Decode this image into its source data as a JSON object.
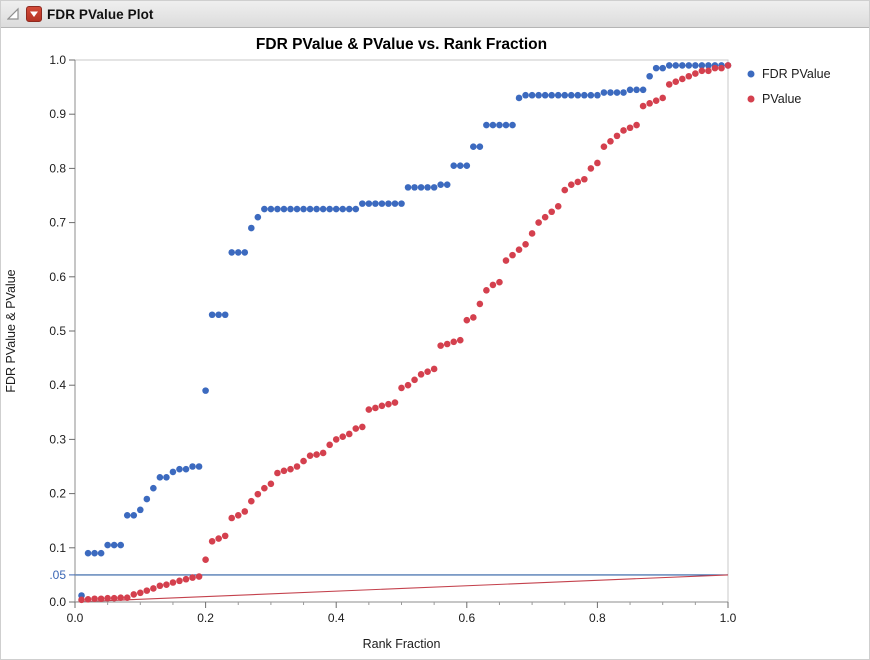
{
  "header": {
    "title": "FDR PValue Plot",
    "outline_icon": "outline-triangle-icon",
    "disclosure_icon": "disclosure-triangle-icon"
  },
  "colors": {
    "fdr_blue": "#3c6abf",
    "pvalue_red": "#d4404e",
    "ref_blue": "#2e5fa3",
    "ref_red": "#c4424d",
    "special_tick_blue": "#3a66b5",
    "header_bg": "#e4e4e4",
    "axis_gray": "#8c8c8c"
  },
  "chart_data": {
    "type": "scatter",
    "title": "FDR PValue & PValue vs. Rank Fraction",
    "xlabel": "Rank Fraction",
    "ylabel": "FDR PValue & PValue",
    "xlim": [
      0,
      1
    ],
    "ylim": [
      0,
      1
    ],
    "grid": false,
    "legend_position": "right-top",
    "x_ticks": {
      "values": [
        0,
        0.2,
        0.4,
        0.6,
        0.8,
        1.0
      ],
      "labels": [
        "0.0",
        "0.2",
        "0.4",
        "0.6",
        "0.8",
        "1.0"
      ]
    },
    "y_ticks": {
      "values": [
        0,
        0.1,
        0.2,
        0.3,
        0.4,
        0.5,
        0.6,
        0.7,
        0.8,
        0.9,
        1.0
      ],
      "labels": [
        "0.0",
        "0.1",
        "0.2",
        "0.3",
        "0.4",
        "0.5",
        "0.6",
        "0.7",
        "0.8",
        "0.9",
        "1.0"
      ]
    },
    "special_y_tick": {
      "value": 0.05,
      "label": ".05",
      "color": "#3a66b5"
    },
    "ref_lines": [
      {
        "type": "horizontal",
        "y": 0.05,
        "color": "#2e5fa3"
      },
      {
        "type": "segment",
        "x1": 0,
        "y1": 0,
        "x2": 1,
        "y2": 0.05,
        "color": "#c4424d"
      }
    ],
    "x": [
      0.01,
      0.02,
      0.03,
      0.04,
      0.05,
      0.06,
      0.07,
      0.08,
      0.09,
      0.1,
      0.11,
      0.12,
      0.13,
      0.14,
      0.15,
      0.16,
      0.17,
      0.18,
      0.19,
      0.2,
      0.21,
      0.22,
      0.23,
      0.24,
      0.25,
      0.26,
      0.27,
      0.28,
      0.29,
      0.3,
      0.31,
      0.32,
      0.33,
      0.34,
      0.35,
      0.36,
      0.37,
      0.38,
      0.39,
      0.4,
      0.41,
      0.42,
      0.43,
      0.44,
      0.45,
      0.46,
      0.47,
      0.48,
      0.49,
      0.5,
      0.51,
      0.52,
      0.53,
      0.54,
      0.55,
      0.56,
      0.57,
      0.58,
      0.59,
      0.6,
      0.61,
      0.62,
      0.63,
      0.64,
      0.65,
      0.66,
      0.67,
      0.68,
      0.69,
      0.7,
      0.71,
      0.72,
      0.73,
      0.74,
      0.75,
      0.76,
      0.77,
      0.78,
      0.79,
      0.8,
      0.81,
      0.82,
      0.83,
      0.84,
      0.85,
      0.86,
      0.87,
      0.88,
      0.89,
      0.9,
      0.91,
      0.92,
      0.93,
      0.94,
      0.95,
      0.96,
      0.97,
      0.98,
      0.99,
      1.0
    ],
    "series": [
      {
        "name": "FDR PValue",
        "color": "#3c6abf",
        "values": [
          0.012,
          0.09,
          0.09,
          0.09,
          0.105,
          0.105,
          0.105,
          0.16,
          0.16,
          0.17,
          0.19,
          0.21,
          0.23,
          0.23,
          0.24,
          0.245,
          0.245,
          0.25,
          0.25,
          0.39,
          0.53,
          0.53,
          0.53,
          0.645,
          0.645,
          0.645,
          0.69,
          0.71,
          0.725,
          0.725,
          0.725,
          0.725,
          0.725,
          0.725,
          0.725,
          0.725,
          0.725,
          0.725,
          0.725,
          0.725,
          0.725,
          0.725,
          0.725,
          0.735,
          0.735,
          0.735,
          0.735,
          0.735,
          0.735,
          0.735,
          0.765,
          0.765,
          0.765,
          0.765,
          0.765,
          0.77,
          0.77,
          0.805,
          0.805,
          0.805,
          0.84,
          0.84,
          0.88,
          0.88,
          0.88,
          0.88,
          0.88,
          0.93,
          0.935,
          0.935,
          0.935,
          0.935,
          0.935,
          0.935,
          0.935,
          0.935,
          0.935,
          0.935,
          0.935,
          0.935,
          0.94,
          0.94,
          0.94,
          0.94,
          0.945,
          0.945,
          0.945,
          0.97,
          0.985,
          0.985,
          0.99,
          0.99,
          0.99,
          0.99,
          0.99,
          0.99,
          0.99,
          0.99,
          0.99,
          0.99
        ]
      },
      {
        "name": "PValue",
        "color": "#d4404e",
        "values": [
          0.004,
          0.005,
          0.006,
          0.006,
          0.007,
          0.007,
          0.008,
          0.008,
          0.014,
          0.017,
          0.021,
          0.025,
          0.03,
          0.032,
          0.036,
          0.039,
          0.042,
          0.045,
          0.047,
          0.078,
          0.112,
          0.117,
          0.122,
          0.155,
          0.16,
          0.167,
          0.186,
          0.199,
          0.21,
          0.218,
          0.238,
          0.242,
          0.245,
          0.25,
          0.26,
          0.27,
          0.272,
          0.275,
          0.29,
          0.3,
          0.305,
          0.31,
          0.32,
          0.323,
          0.355,
          0.358,
          0.362,
          0.365,
          0.368,
          0.395,
          0.4,
          0.41,
          0.42,
          0.425,
          0.43,
          0.473,
          0.476,
          0.48,
          0.483,
          0.52,
          0.525,
          0.55,
          0.575,
          0.585,
          0.59,
          0.63,
          0.64,
          0.65,
          0.66,
          0.68,
          0.7,
          0.71,
          0.72,
          0.73,
          0.76,
          0.77,
          0.775,
          0.78,
          0.8,
          0.81,
          0.84,
          0.85,
          0.86,
          0.87,
          0.875,
          0.88,
          0.915,
          0.92,
          0.925,
          0.93,
          0.955,
          0.96,
          0.965,
          0.97,
          0.975,
          0.98,
          0.98,
          0.985,
          0.985,
          0.99
        ]
      }
    ]
  }
}
